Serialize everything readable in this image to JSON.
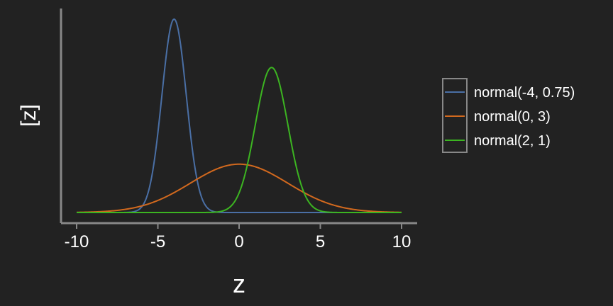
{
  "chart_data": {
    "type": "line",
    "xlabel": "z",
    "ylabel": "[z]",
    "xlim": [
      -10,
      10
    ],
    "xticks": [
      -10,
      -5,
      0,
      5,
      10
    ],
    "grid": false,
    "legend_placement": "right",
    "series": [
      {
        "name": "normal(-4, 0.75)",
        "dist": "normal",
        "mean": -4,
        "sd": 0.75,
        "color": "#4a6fa5"
      },
      {
        "name": "normal(0, 3)",
        "dist": "normal",
        "mean": 0,
        "sd": 3,
        "color": "#d2691e"
      },
      {
        "name": "normal(2, 1)",
        "dist": "normal",
        "mean": 2,
        "sd": 1,
        "color": "#3cb521"
      }
    ]
  },
  "colors": {
    "background": "#222222",
    "axis": "#888888",
    "text": "#ffffff"
  }
}
